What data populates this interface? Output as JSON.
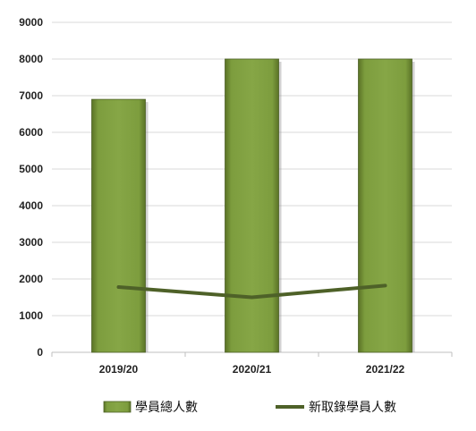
{
  "chart_data": {
    "type": "bar",
    "categories": [
      "2019/20",
      "2020/21",
      "2021/22"
    ],
    "series": [
      {
        "name": "學員總人數",
        "kind": "bar",
        "values": [
          6900,
          8000,
          8000
        ],
        "color": "#7a9a3c"
      },
      {
        "name": "新取錄學員人數",
        "kind": "line",
        "values": [
          1780,
          1500,
          1820
        ],
        "color": "#4e6128"
      }
    ],
    "y_ticks": [
      "0",
      "1000",
      "2000",
      "3000",
      "4000",
      "5000",
      "6000",
      "7000",
      "8000",
      "9000"
    ],
    "ylim": [
      0,
      9000
    ],
    "grid": true,
    "legend_position": "bottom"
  }
}
